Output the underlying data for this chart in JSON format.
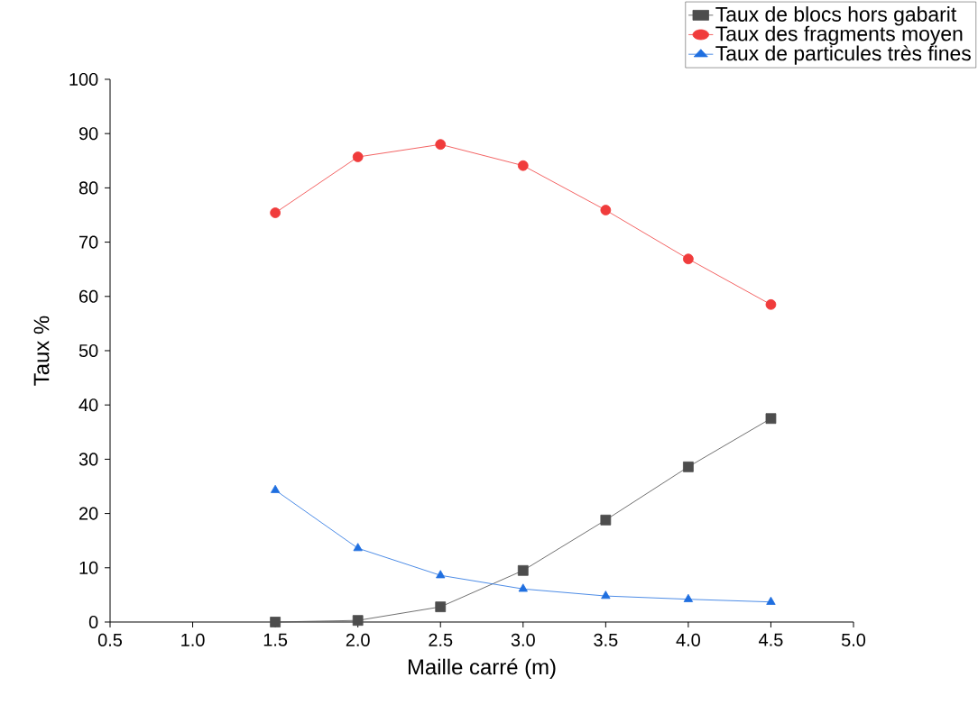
{
  "chart_data": {
    "type": "line",
    "xlabel": "Maille carré (m)",
    "ylabel": "Taux %",
    "x": [
      1.5,
      2.0,
      2.5,
      3.0,
      3.5,
      4.0,
      4.5
    ],
    "series": [
      {
        "name": "Taux de blocs hors gabarit",
        "color": "#4d4d4d",
        "marker": "square",
        "values": [
          0,
          0.3,
          2.8,
          9.5,
          18.8,
          28.6,
          37.5
        ]
      },
      {
        "name": "Taux des fragments moyen",
        "color": "#f03c3c",
        "marker": "circle",
        "values": [
          75.4,
          85.7,
          88.0,
          84.1,
          75.9,
          66.9,
          58.5
        ]
      },
      {
        "name": "Taux de particules très fines",
        "color": "#1f6fe0",
        "marker": "triangle",
        "values": [
          24.3,
          13.6,
          8.6,
          6.1,
          4.8,
          4.2,
          3.7
        ]
      }
    ],
    "xlim": [
      0.5,
      5.0
    ],
    "xticks": [
      {
        "value": 0.5,
        "label": "0.5"
      },
      {
        "value": 1.0,
        "label": "1.0"
      },
      {
        "value": 1.5,
        "label": "1.5"
      },
      {
        "value": 2.0,
        "label": "2.0"
      },
      {
        "value": 2.5,
        "label": "2.5"
      },
      {
        "value": 3.0,
        "label": "3.0"
      },
      {
        "value": 3.5,
        "label": "3.5"
      },
      {
        "value": 4.0,
        "label": "4.0"
      },
      {
        "value": 4.5,
        "label": "4.5"
      },
      {
        "value": 5.0,
        "label": "5.0"
      }
    ],
    "ylim": [
      0,
      100
    ],
    "yticks": [
      0,
      10,
      20,
      30,
      40,
      50,
      60,
      70,
      80,
      90,
      100
    ],
    "grid": false,
    "legend": "top right",
    "line_style": "solid"
  }
}
